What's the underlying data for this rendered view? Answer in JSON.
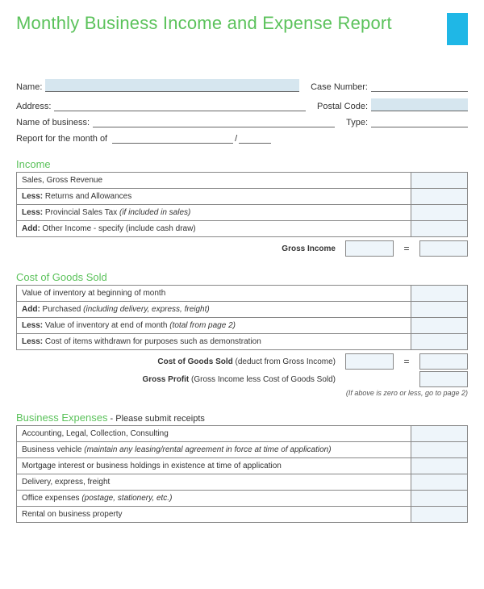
{
  "title": "Monthly Business Income and Expense Report",
  "accent_color": "#1fb7e6",
  "title_color": "#5bc25b",
  "form": {
    "name_label": "Name:",
    "case_label": "Case Number:",
    "address_label": "Address:",
    "postal_label": "Postal Code:",
    "business_label": "Name of business:",
    "type_label": "Type:",
    "report_month_label": "Report for the month of",
    "slash": "/"
  },
  "income": {
    "header": "Income",
    "rows": [
      {
        "text": "Sales, Gross Revenue"
      },
      {
        "prefix": "Less:",
        "text": " Returns and Allowances"
      },
      {
        "prefix": "Less:",
        "text": " Provincial Sales Tax ",
        "ital": "(if included in sales)"
      },
      {
        "prefix": "Add:",
        "text": " Other Income - specify (include cash draw)"
      }
    ],
    "gross_label": "Gross Income",
    "eq": "="
  },
  "cogs": {
    "header": "Cost of Goods Sold",
    "rows": [
      {
        "text": "Value of inventory at beginning of month"
      },
      {
        "prefix": "Add:",
        "text": " Purchased ",
        "ital": "(including delivery, express, freight)"
      },
      {
        "prefix": "Less:",
        "text": " Value of inventory at end of month ",
        "ital": "(total from page 2)"
      },
      {
        "prefix": "Less:",
        "text": " Cost of items withdrawn for purposes such as demonstration"
      }
    ],
    "sum_label": "Cost of Goods Sold",
    "sum_note": " (deduct from Gross Income)",
    "profit_label": "Gross Profit",
    "profit_note": " (Gross Income less Cost of Goods Sold)",
    "footnote": "(If above is zero or less, go to page 2)",
    "eq": "="
  },
  "expenses": {
    "header": "Business Expenses",
    "header_note": " - Please submit receipts",
    "rows": [
      {
        "text": "Accounting, Legal, Collection, Consulting"
      },
      {
        "text": "Business vehicle ",
        "ital": "(maintain any leasing/rental agreement in force at time of application)"
      },
      {
        "text": "Mortgage interest or business holdings in existence at time of application"
      },
      {
        "text": "Delivery, express, freight"
      },
      {
        "text": "Office expenses ",
        "ital": "(postage, stationery, etc.)"
      },
      {
        "text": "Rental on business property"
      }
    ]
  }
}
